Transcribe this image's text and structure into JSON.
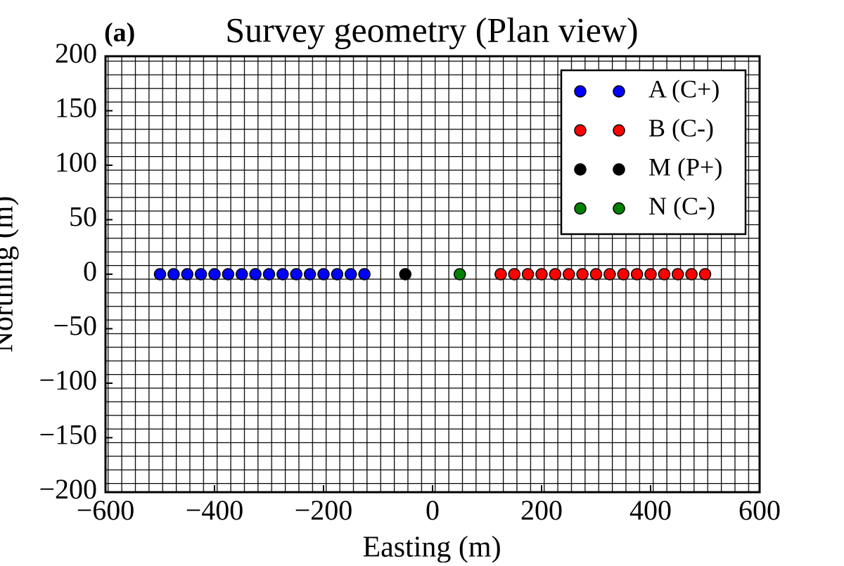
{
  "chart_data": {
    "type": "scatter",
    "title": "Survey geometry (Plan view)",
    "annotation": "(a)",
    "xlabel": "Easting (m)",
    "ylabel": "Northing (m)",
    "xlim": [
      -600,
      600
    ],
    "ylim": [
      -200,
      200
    ],
    "xticks": [
      {
        "value": -600,
        "label": "−600"
      },
      {
        "value": -400,
        "label": "−400"
      },
      {
        "value": -200,
        "label": "−200"
      },
      0,
      200,
      400,
      600
    ],
    "yticks": [
      {
        "value": -200,
        "label": "−200"
      },
      {
        "value": -150,
        "label": "−150"
      },
      {
        "value": -100,
        "label": "−100"
      },
      {
        "value": -50,
        "label": "−50"
      },
      0,
      50,
      100,
      150,
      200
    ],
    "legend": "upper right",
    "series": [
      {
        "name": "A (C+)",
        "color": "#0000ff",
        "x": [
          -500,
          -475,
          -450,
          -425,
          -400,
          -375,
          -350,
          -325,
          -300,
          -275,
          -250,
          -225,
          -200,
          -175,
          -150,
          -125
        ],
        "values": [
          0,
          0,
          0,
          0,
          0,
          0,
          0,
          0,
          0,
          0,
          0,
          0,
          0,
          0,
          0,
          0
        ]
      },
      {
        "name": "B (C-)",
        "color": "#ff0000",
        "x": [
          125,
          150,
          175,
          200,
          225,
          250,
          275,
          300,
          325,
          350,
          375,
          400,
          425,
          450,
          475,
          500
        ],
        "values": [
          0,
          0,
          0,
          0,
          0,
          0,
          0,
          0,
          0,
          0,
          0,
          0,
          0,
          0,
          0,
          0
        ]
      },
      {
        "name": "M (P+)",
        "color": "#000000",
        "x": [
          -50
        ],
        "values": [
          0
        ]
      },
      {
        "name": "N (C-)",
        "color": "#008000",
        "x": [
          50
        ],
        "values": [
          0
        ]
      }
    ]
  }
}
